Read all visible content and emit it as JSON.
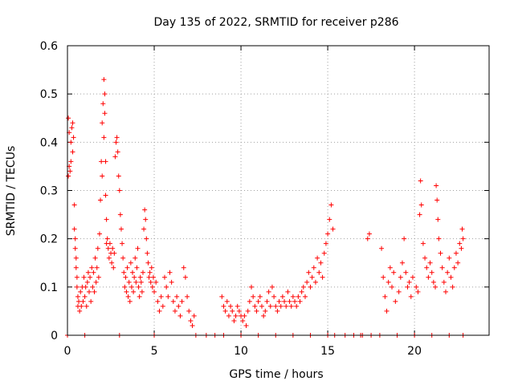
{
  "chart_data": {
    "type": "scatter",
    "title": "Day 135 of 2022, SRMTID for receiver p286",
    "xlabel": "GPS time / hours",
    "ylabel": "SRMTID / TECUs",
    "xlim": [
      0,
      24.3
    ],
    "ylim": [
      0,
      0.6
    ],
    "xticks": [
      0,
      5,
      10,
      15,
      20
    ],
    "yticks": [
      0,
      0.1,
      0.2,
      0.3,
      0.4,
      0.5,
      0.6
    ],
    "xtick_labels": [
      "0",
      "5",
      "10",
      "15",
      "20"
    ],
    "ytick_labels": [
      "0",
      "0.1",
      "0.2",
      "0.3",
      "0.4",
      "0.5",
      "0.6"
    ],
    "grid": true,
    "marker": "+",
    "color": "#ff0000",
    "series": [
      {
        "name": "SRMTID",
        "points": [
          [
            0.0,
            0.0
          ],
          [
            0.05,
            0.45
          ],
          [
            0.05,
            0.33
          ],
          [
            0.1,
            0.35
          ],
          [
            0.1,
            0.42
          ],
          [
            0.15,
            0.34
          ],
          [
            0.2,
            0.4
          ],
          [
            0.2,
            0.36
          ],
          [
            0.25,
            0.43
          ],
          [
            0.3,
            0.38
          ],
          [
            0.3,
            0.44
          ],
          [
            0.35,
            0.41
          ],
          [
            0.4,
            0.27
          ],
          [
            0.4,
            0.22
          ],
          [
            0.45,
            0.2
          ],
          [
            0.45,
            0.18
          ],
          [
            0.5,
            0.16
          ],
          [
            0.5,
            0.14
          ],
          [
            0.55,
            0.12
          ],
          [
            0.55,
            0.1
          ],
          [
            0.6,
            0.08
          ],
          [
            0.6,
            0.06
          ],
          [
            0.65,
            0.07
          ],
          [
            0.7,
            0.05
          ],
          [
            0.75,
            0.09
          ],
          [
            0.8,
            0.06
          ],
          [
            0.85,
            0.1
          ],
          [
            0.9,
            0.07
          ],
          [
            0.95,
            0.12
          ],
          [
            1.0,
            0.08
          ],
          [
            1.0,
            0.0
          ],
          [
            1.05,
            0.1
          ],
          [
            1.1,
            0.06
          ],
          [
            1.15,
            0.11
          ],
          [
            1.2,
            0.13
          ],
          [
            1.25,
            0.09
          ],
          [
            1.3,
            0.12
          ],
          [
            1.35,
            0.07
          ],
          [
            1.4,
            0.14
          ],
          [
            1.45,
            0.1
          ],
          [
            1.5,
            0.13
          ],
          [
            1.55,
            0.09
          ],
          [
            1.6,
            0.16
          ],
          [
            1.65,
            0.11
          ],
          [
            1.7,
            0.14
          ],
          [
            1.75,
            0.18
          ],
          [
            1.8,
            0.12
          ],
          [
            1.85,
            0.21
          ],
          [
            1.9,
            0.28
          ],
          [
            1.95,
            0.36
          ],
          [
            2.0,
            0.44
          ],
          [
            2.0,
            0.33
          ],
          [
            2.05,
            0.48
          ],
          [
            2.1,
            0.53
          ],
          [
            2.1,
            0.41
          ],
          [
            2.15,
            0.5
          ],
          [
            2.15,
            0.46
          ],
          [
            2.2,
            0.36
          ],
          [
            2.2,
            0.29
          ],
          [
            2.25,
            0.24
          ],
          [
            2.25,
            0.19
          ],
          [
            2.3,
            0.2
          ],
          [
            2.35,
            0.18
          ],
          [
            2.4,
            0.16
          ],
          [
            2.45,
            0.19
          ],
          [
            2.5,
            0.17
          ],
          [
            2.55,
            0.15
          ],
          [
            2.6,
            0.18
          ],
          [
            2.65,
            0.14
          ],
          [
            2.7,
            0.17
          ],
          [
            2.75,
            0.37
          ],
          [
            2.8,
            0.4
          ],
          [
            2.85,
            0.41
          ],
          [
            2.9,
            0.38
          ],
          [
            2.95,
            0.33
          ],
          [
            3.0,
            0.3
          ],
          [
            3.0,
            0.0
          ],
          [
            3.05,
            0.25
          ],
          [
            3.1,
            0.22
          ],
          [
            3.15,
            0.19
          ],
          [
            3.2,
            0.16
          ],
          [
            3.25,
            0.13
          ],
          [
            3.3,
            0.1
          ],
          [
            3.35,
            0.12
          ],
          [
            3.4,
            0.09
          ],
          [
            3.45,
            0.14
          ],
          [
            3.5,
            0.08
          ],
          [
            3.55,
            0.11
          ],
          [
            3.6,
            0.07
          ],
          [
            3.65,
            0.15
          ],
          [
            3.7,
            0.1
          ],
          [
            3.75,
            0.13
          ],
          [
            3.8,
            0.09
          ],
          [
            3.85,
            0.12
          ],
          [
            3.9,
            0.16
          ],
          [
            3.95,
            0.11
          ],
          [
            4.0,
            0.14
          ],
          [
            4.05,
            0.18
          ],
          [
            4.1,
            0.1
          ],
          [
            4.15,
            0.08
          ],
          [
            4.2,
            0.12
          ],
          [
            4.25,
            0.11
          ],
          [
            4.3,
            0.09
          ],
          [
            4.35,
            0.13
          ],
          [
            4.4,
            0.22
          ],
          [
            4.45,
            0.26
          ],
          [
            4.5,
            0.24
          ],
          [
            4.55,
            0.2
          ],
          [
            4.6,
            0.17
          ],
          [
            4.65,
            0.15
          ],
          [
            4.7,
            0.12
          ],
          [
            4.75,
            0.13
          ],
          [
            4.8,
            0.11
          ],
          [
            4.85,
            0.14
          ],
          [
            4.9,
            0.1
          ],
          [
            4.95,
            0.12
          ],
          [
            5.0,
            0.09
          ],
          [
            5.0,
            0.0
          ],
          [
            5.1,
            0.11
          ],
          [
            5.2,
            0.07
          ],
          [
            5.3,
            0.05
          ],
          [
            5.4,
            0.08
          ],
          [
            5.5,
            0.06
          ],
          [
            5.6,
            0.12
          ],
          [
            5.7,
            0.1
          ],
          [
            5.8,
            0.08
          ],
          [
            5.9,
            0.13
          ],
          [
            6.0,
            0.11
          ],
          [
            6.1,
            0.07
          ],
          [
            6.2,
            0.05
          ],
          [
            6.3,
            0.08
          ],
          [
            6.4,
            0.06
          ],
          [
            6.5,
            0.04
          ],
          [
            6.6,
            0.07
          ],
          [
            6.7,
            0.14
          ],
          [
            6.8,
            0.12
          ],
          [
            6.9,
            0.08
          ],
          [
            7.0,
            0.05
          ],
          [
            7.1,
            0.03
          ],
          [
            7.2,
            0.02
          ],
          [
            7.3,
            0.04
          ],
          [
            7.4,
            0.0
          ],
          [
            8.0,
            0.0
          ],
          [
            8.5,
            0.0
          ],
          [
            8.9,
            0.08
          ],
          [
            9.0,
            0.06
          ],
          [
            9.0,
            0.0
          ],
          [
            9.1,
            0.05
          ],
          [
            9.2,
            0.07
          ],
          [
            9.3,
            0.04
          ],
          [
            9.4,
            0.06
          ],
          [
            9.5,
            0.05
          ],
          [
            9.6,
            0.03
          ],
          [
            9.7,
            0.04
          ],
          [
            9.8,
            0.06
          ],
          [
            9.9,
            0.05
          ],
          [
            10.0,
            0.04
          ],
          [
            10.0,
            0.0
          ],
          [
            10.1,
            0.03
          ],
          [
            10.2,
            0.04
          ],
          [
            10.3,
            0.02
          ],
          [
            10.4,
            0.05
          ],
          [
            10.5,
            0.07
          ],
          [
            10.6,
            0.1
          ],
          [
            10.7,
            0.08
          ],
          [
            10.8,
            0.06
          ],
          [
            10.9,
            0.05
          ],
          [
            11.0,
            0.07
          ],
          [
            11.0,
            0.0
          ],
          [
            11.1,
            0.08
          ],
          [
            11.2,
            0.06
          ],
          [
            11.3,
            0.04
          ],
          [
            11.4,
            0.05
          ],
          [
            11.5,
            0.07
          ],
          [
            11.6,
            0.09
          ],
          [
            11.7,
            0.06
          ],
          [
            11.8,
            0.1
          ],
          [
            11.9,
            0.08
          ],
          [
            12.0,
            0.06
          ],
          [
            12.0,
            0.0
          ],
          [
            12.1,
            0.05
          ],
          [
            12.2,
            0.07
          ],
          [
            12.3,
            0.06
          ],
          [
            12.4,
            0.08
          ],
          [
            12.5,
            0.07
          ],
          [
            12.6,
            0.06
          ],
          [
            12.7,
            0.09
          ],
          [
            12.8,
            0.07
          ],
          [
            12.9,
            0.06
          ],
          [
            13.0,
            0.08
          ],
          [
            13.0,
            0.0
          ],
          [
            13.1,
            0.07
          ],
          [
            13.2,
            0.06
          ],
          [
            13.3,
            0.08
          ],
          [
            13.4,
            0.07
          ],
          [
            13.5,
            0.09
          ],
          [
            13.6,
            0.1
          ],
          [
            13.7,
            0.08
          ],
          [
            13.8,
            0.11
          ],
          [
            13.9,
            0.13
          ],
          [
            14.0,
            0.1
          ],
          [
            14.0,
            0.0
          ],
          [
            14.1,
            0.12
          ],
          [
            14.2,
            0.14
          ],
          [
            14.3,
            0.11
          ],
          [
            14.4,
            0.16
          ],
          [
            14.5,
            0.13
          ],
          [
            14.6,
            0.15
          ],
          [
            14.7,
            0.12
          ],
          [
            14.8,
            0.17
          ],
          [
            14.9,
            0.19
          ],
          [
            15.0,
            0.21
          ],
          [
            15.0,
            0.0
          ],
          [
            15.1,
            0.24
          ],
          [
            15.2,
            0.27
          ],
          [
            15.3,
            0.22
          ],
          [
            15.4,
            0.0
          ],
          [
            16.0,
            0.0
          ],
          [
            16.5,
            0.0
          ],
          [
            16.9,
            0.0
          ],
          [
            17.0,
            0.0
          ],
          [
            17.3,
            0.2
          ],
          [
            17.4,
            0.21
          ],
          [
            17.5,
            0.0
          ],
          [
            18.0,
            0.0
          ],
          [
            18.1,
            0.18
          ],
          [
            18.2,
            0.12
          ],
          [
            18.3,
            0.08
          ],
          [
            18.4,
            0.05
          ],
          [
            18.5,
            0.11
          ],
          [
            18.6,
            0.14
          ],
          [
            18.7,
            0.1
          ],
          [
            18.8,
            0.13
          ],
          [
            18.9,
            0.07
          ],
          [
            19.0,
            0.0
          ],
          [
            19.1,
            0.09
          ],
          [
            19.2,
            0.12
          ],
          [
            19.3,
            0.15
          ],
          [
            19.4,
            0.2
          ],
          [
            19.5,
            0.13
          ],
          [
            19.6,
            0.1
          ],
          [
            19.7,
            0.11
          ],
          [
            19.8,
            0.08
          ],
          [
            19.9,
            0.12
          ],
          [
            20.0,
            0.0
          ],
          [
            20.1,
            0.1
          ],
          [
            20.2,
            0.09
          ],
          [
            20.3,
            0.25
          ],
          [
            20.35,
            0.32
          ],
          [
            20.4,
            0.27
          ],
          [
            20.5,
            0.19
          ],
          [
            20.6,
            0.16
          ],
          [
            20.7,
            0.14
          ],
          [
            20.8,
            0.12
          ],
          [
            20.9,
            0.15
          ],
          [
            21.0,
            0.13
          ],
          [
            21.0,
            0.0
          ],
          [
            21.1,
            0.11
          ],
          [
            21.2,
            0.1
          ],
          [
            21.25,
            0.31
          ],
          [
            21.3,
            0.28
          ],
          [
            21.35,
            0.24
          ],
          [
            21.4,
            0.2
          ],
          [
            21.5,
            0.17
          ],
          [
            21.6,
            0.14
          ],
          [
            21.7,
            0.11
          ],
          [
            21.8,
            0.09
          ],
          [
            21.9,
            0.13
          ],
          [
            22.0,
            0.16
          ],
          [
            22.0,
            0.0
          ],
          [
            22.1,
            0.12
          ],
          [
            22.2,
            0.1
          ],
          [
            22.3,
            0.14
          ],
          [
            22.4,
            0.17
          ],
          [
            22.5,
            0.15
          ],
          [
            22.6,
            0.19
          ],
          [
            22.7,
            0.18
          ],
          [
            22.75,
            0.22
          ],
          [
            22.8,
            0.2
          ],
          [
            22.8,
            0.0
          ]
        ]
      }
    ]
  }
}
